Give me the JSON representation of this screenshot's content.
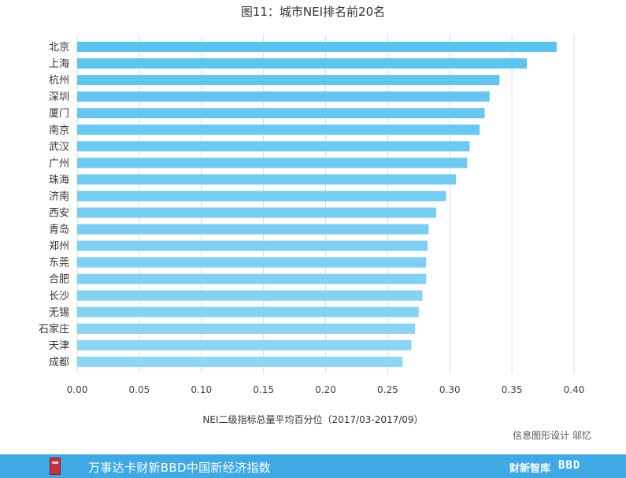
{
  "title": "图11：城市NEI排名前20名",
  "xlabel": "NEI二级指标总量平均百分位（2017/03-2017/09）",
  "credit": "信息图形设计 邬忆",
  "footer": {
    "slogan": "万事达卡财新BBD中国新经济指数",
    "logo_caixin": "财新智库",
    "logo_bbd": "BBD",
    "book_icon": "book-icon"
  },
  "colors": {
    "bar_top": "#5bc3f0",
    "bar_bottom": "#8dd6f5",
    "grid": "#dcdcdc",
    "footer": "#3fa9e6"
  },
  "chart_data": {
    "type": "bar",
    "orientation": "horizontal",
    "categories": [
      "北京",
      "上海",
      "杭州",
      "深圳",
      "厦门",
      "南京",
      "武汉",
      "广州",
      "珠海",
      "济南",
      "西安",
      "青岛",
      "郑州",
      "东莞",
      "合肥",
      "长沙",
      "无锡",
      "石家庄",
      "天津",
      "成都"
    ],
    "values": [
      0.386,
      0.362,
      0.34,
      0.332,
      0.328,
      0.324,
      0.316,
      0.314,
      0.305,
      0.297,
      0.289,
      0.283,
      0.282,
      0.281,
      0.281,
      0.278,
      0.275,
      0.272,
      0.269,
      0.262
    ],
    "xlim": [
      0,
      0.4
    ],
    "xticks": [
      "0.00",
      "0.05",
      "0.10",
      "0.15",
      "0.20",
      "0.25",
      "0.30",
      "0.35",
      "0.40"
    ],
    "grid": true,
    "title": "图11：城市NEI排名前20名",
    "xlabel": "NEI二级指标总量平均百分位（2017/03-2017/09）",
    "ylabel": ""
  }
}
